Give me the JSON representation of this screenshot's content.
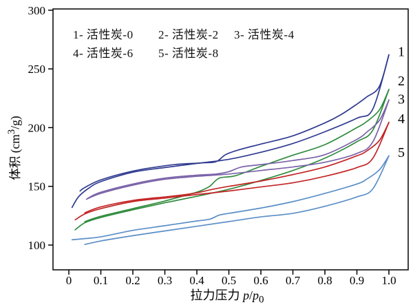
{
  "figure": {
    "background": "#ffffff",
    "frame_color": "#000000"
  },
  "legend": {
    "items": [
      {
        "label": "1- 活性炭-0"
      },
      {
        "label": "2- 活性炭-2"
      },
      {
        "label": "3- 活性炭-4"
      },
      {
        "label": "4- 活性炭-6"
      },
      {
        "label": "5- 活性炭-8"
      }
    ]
  },
  "axes": {
    "x": {
      "title_cn": "拉力压力",
      "var1": "p",
      "slash": "/",
      "var2": "p",
      "sub": "0",
      "tick_values": [
        0,
        0.1,
        0.2,
        0.3,
        0.4,
        0.5,
        0.6,
        0.7,
        0.8,
        0.9,
        1.0
      ],
      "tick_labels": [
        "0",
        "0.1",
        "0.2",
        "0.3",
        "0.4",
        "0.5",
        "0.6",
        "0.7",
        "0.8",
        "0.9",
        "1.0"
      ]
    },
    "y": {
      "title_prefix": "体积 (cm",
      "title_sup": "3",
      "title_suffix": "/g)",
      "tick_values": [
        100,
        150,
        200,
        250,
        300
      ],
      "tick_labels": [
        "100",
        "150",
        "200",
        "250",
        "300"
      ]
    }
  },
  "chart_data": {
    "type": "line",
    "title": "",
    "xlabel": "拉力压力 p/p0",
    "ylabel": "体积 (cm3/g)",
    "xlim": [
      0,
      1.05
    ],
    "ylim": [
      78,
      300
    ],
    "grid": false,
    "legend_position": "inside top-left, text only",
    "description": "N2 adsorption-desorption isotherms with hysteresis loops for five activated carbon samples; each series has an adsorption (lower) and desorption (upper) branch given as [p/p0, volume cm3/g] pairs",
    "series": [
      {
        "name": "活性炭-0",
        "curve_label": "1",
        "color": "#2f3a8f",
        "label_v": 265,
        "adsorption": [
          [
            0.01,
            132
          ],
          [
            0.03,
            141
          ],
          [
            0.06,
            148
          ],
          [
            0.1,
            154
          ],
          [
            0.2,
            162
          ],
          [
            0.3,
            166
          ],
          [
            0.4,
            169.5
          ],
          [
            0.5,
            173
          ],
          [
            0.6,
            179
          ],
          [
            0.7,
            186.5
          ],
          [
            0.8,
            196.5
          ],
          [
            0.9,
            208
          ],
          [
            0.95,
            216
          ],
          [
            1.0,
            262
          ]
        ],
        "desorption": [
          [
            1.0,
            262
          ],
          [
            0.97,
            235
          ],
          [
            0.93,
            226
          ],
          [
            0.9,
            220
          ],
          [
            0.85,
            211
          ],
          [
            0.8,
            204
          ],
          [
            0.7,
            193
          ],
          [
            0.6,
            186
          ],
          [
            0.53,
            181
          ],
          [
            0.49,
            177
          ],
          [
            0.46,
            171
          ],
          [
            0.42,
            170
          ],
          [
            0.35,
            169
          ],
          [
            0.3,
            167.5
          ],
          [
            0.2,
            163
          ],
          [
            0.1,
            155.5
          ],
          [
            0.05,
            149
          ],
          [
            0.035,
            146
          ]
        ]
      },
      {
        "name": "活性炭-2",
        "curve_label": "2",
        "color": "#2e8b3c",
        "label_v": 240,
        "adsorption": [
          [
            0.02,
            113
          ],
          [
            0.05,
            119
          ],
          [
            0.1,
            123.5
          ],
          [
            0.2,
            130
          ],
          [
            0.3,
            136
          ],
          [
            0.4,
            141.5
          ],
          [
            0.5,
            147.5
          ],
          [
            0.6,
            155
          ],
          [
            0.7,
            163.5
          ],
          [
            0.8,
            174
          ],
          [
            0.9,
            188
          ],
          [
            0.95,
            198
          ],
          [
            1.0,
            232.5
          ]
        ],
        "desorption": [
          [
            1.0,
            232.5
          ],
          [
            0.97,
            215
          ],
          [
            0.93,
            205
          ],
          [
            0.9,
            200
          ],
          [
            0.8,
            185.5
          ],
          [
            0.7,
            176.5
          ],
          [
            0.6,
            167
          ],
          [
            0.52,
            159
          ],
          [
            0.47,
            157
          ],
          [
            0.44,
            150
          ],
          [
            0.41,
            146
          ],
          [
            0.38,
            143.5
          ],
          [
            0.3,
            137.5
          ],
          [
            0.2,
            131
          ],
          [
            0.1,
            124.5
          ],
          [
            0.05,
            120
          ]
        ]
      },
      {
        "name": "活性炭-4",
        "curve_label": "3",
        "color": "#7a62a8",
        "label_v": 224.5,
        "adsorption": [
          [
            0.055,
            139
          ],
          [
            0.1,
            144
          ],
          [
            0.2,
            151
          ],
          [
            0.3,
            156
          ],
          [
            0.4,
            158.5
          ],
          [
            0.5,
            160.5
          ],
          [
            0.6,
            163.5
          ],
          [
            0.7,
            166.5
          ],
          [
            0.8,
            170.5
          ],
          [
            0.9,
            178
          ],
          [
            0.95,
            188
          ],
          [
            1.0,
            223.5
          ]
        ],
        "desorption": [
          [
            1.0,
            223.5
          ],
          [
            0.97,
            206
          ],
          [
            0.93,
            196
          ],
          [
            0.9,
            190
          ],
          [
            0.8,
            177
          ],
          [
            0.7,
            172
          ],
          [
            0.6,
            168.5
          ],
          [
            0.54,
            166.5
          ],
          [
            0.5,
            162.5
          ],
          [
            0.46,
            160.5
          ],
          [
            0.4,
            159.5
          ],
          [
            0.3,
            157
          ],
          [
            0.2,
            152
          ],
          [
            0.1,
            145
          ],
          [
            0.06,
            140
          ]
        ]
      },
      {
        "name": "活性炭-6",
        "curve_label": "4",
        "color": "#c32525",
        "label_v": 208,
        "adsorption": [
          [
            0.02,
            121.5
          ],
          [
            0.05,
            126.5
          ],
          [
            0.1,
            131
          ],
          [
            0.2,
            137
          ],
          [
            0.3,
            140
          ],
          [
            0.4,
            143
          ],
          [
            0.5,
            146
          ],
          [
            0.6,
            149.5
          ],
          [
            0.7,
            153
          ],
          [
            0.8,
            158.5
          ],
          [
            0.9,
            166
          ],
          [
            0.95,
            174
          ],
          [
            1.0,
            204.5
          ]
        ],
        "desorption": [
          [
            1.0,
            204.5
          ],
          [
            0.97,
            189
          ],
          [
            0.93,
            180
          ],
          [
            0.9,
            176
          ],
          [
            0.8,
            166.5
          ],
          [
            0.7,
            160
          ],
          [
            0.6,
            154.5
          ],
          [
            0.5,
            150
          ],
          [
            0.45,
            147.5
          ],
          [
            0.4,
            144.5
          ],
          [
            0.35,
            142.5
          ],
          [
            0.3,
            141
          ],
          [
            0.2,
            138
          ],
          [
            0.1,
            132.5
          ],
          [
            0.05,
            127.5
          ]
        ]
      },
      {
        "name": "活性炭-8",
        "curve_label": "5",
        "color": "#5b8ec6",
        "label_v": 179,
        "adsorption": [
          [
            0.05,
            100.5
          ],
          [
            0.1,
            103.5
          ],
          [
            0.2,
            108
          ],
          [
            0.3,
            112
          ],
          [
            0.4,
            116
          ],
          [
            0.5,
            120
          ],
          [
            0.6,
            124
          ],
          [
            0.7,
            127
          ],
          [
            0.8,
            133
          ],
          [
            0.9,
            141
          ],
          [
            0.95,
            148
          ],
          [
            1.0,
            176
          ]
        ],
        "desorption": [
          [
            1.0,
            176
          ],
          [
            0.97,
            164
          ],
          [
            0.93,
            156
          ],
          [
            0.9,
            152
          ],
          [
            0.8,
            144
          ],
          [
            0.7,
            137
          ],
          [
            0.6,
            131.5
          ],
          [
            0.5,
            127
          ],
          [
            0.47,
            125.5
          ],
          [
            0.44,
            122
          ],
          [
            0.4,
            120.5
          ],
          [
            0.3,
            116.5
          ],
          [
            0.2,
            112.5
          ],
          [
            0.1,
            107
          ],
          [
            0.05,
            105.5
          ],
          [
            0.01,
            104.5
          ]
        ]
      }
    ]
  }
}
